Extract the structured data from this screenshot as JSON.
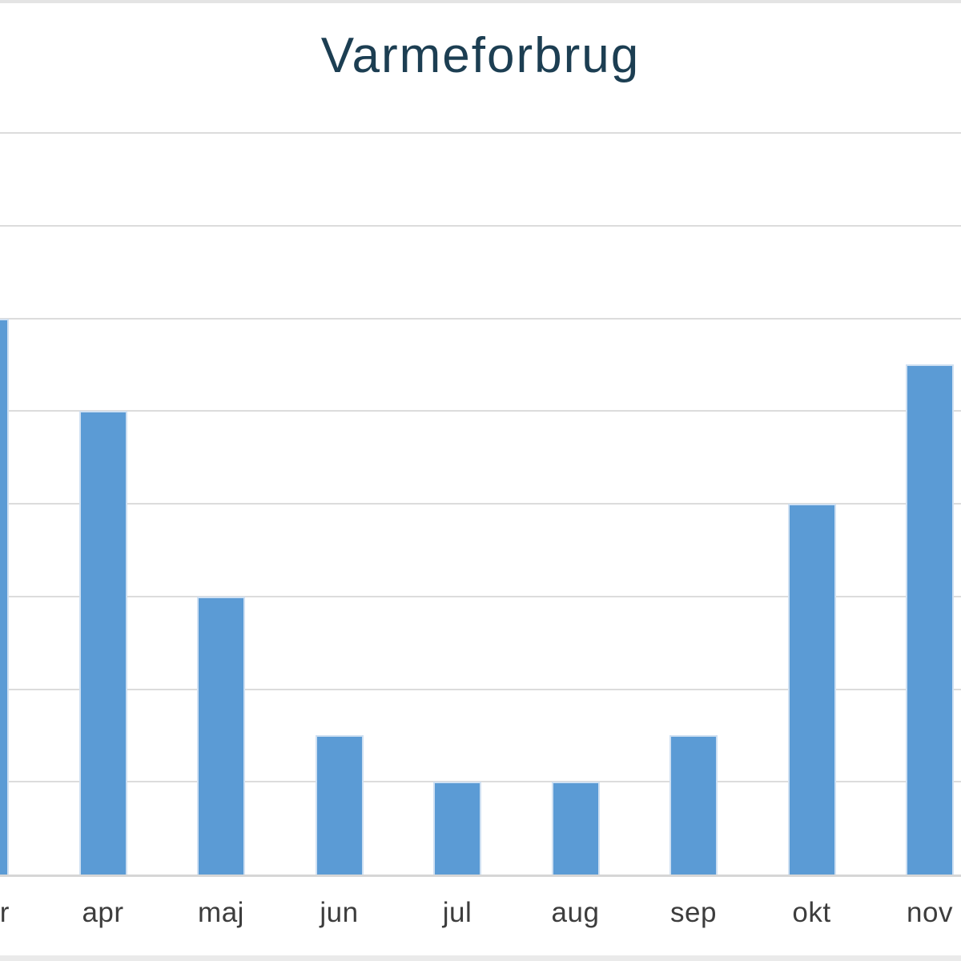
{
  "page": {
    "background_color": "#ffffff",
    "top_strip_color": "#e4e4e4",
    "bottom_strip_color": "#eaeaea"
  },
  "chart_data": {
    "type": "bar",
    "title": "Varmeforbrug",
    "categories": [
      "mar",
      "apr",
      "maj",
      "jun",
      "jul",
      "aug",
      "sep",
      "okt",
      "nov"
    ],
    "values": [
      6,
      5,
      3,
      1.5,
      1,
      1,
      1.5,
      4,
      5.5
    ],
    "xlabel": "",
    "ylabel": "",
    "ylim": [
      0,
      8
    ],
    "grid_step": 1,
    "grid": "horizontal gridlines on, every 1 unit",
    "legend_position": "none",
    "y_tick_labels_visible": false,
    "layout_hints": "single-series column chart cropped at left and right edges; first bar (mar) and last bar (nov) partially visible; no y-axis tick labels visible in crop",
    "colors": {
      "bar_fill": "#5b9bd5",
      "bar_border": "#cfe0f2",
      "title_text": "#1c3e52",
      "axis_label_text": "#3d3d3d",
      "gridline": "#dcdcdc",
      "axis_line": "#d6d6d6"
    }
  }
}
